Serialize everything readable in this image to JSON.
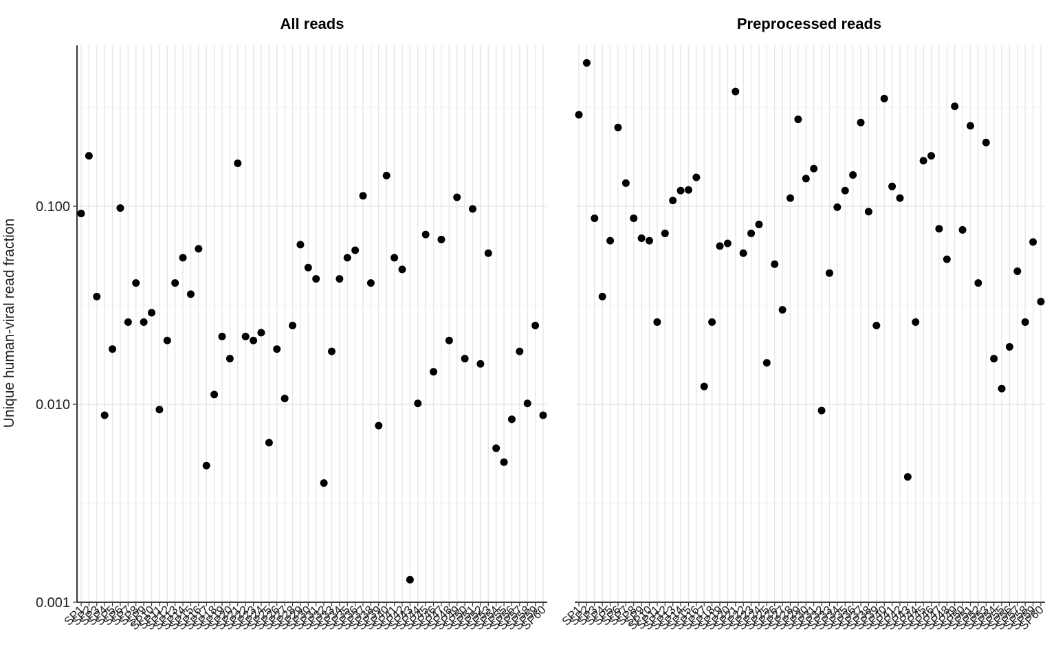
{
  "chart_data": {
    "type": "scatter",
    "ylabel": "Unique human-viral read fraction",
    "xlabel": "",
    "yscale": "log",
    "ylim": [
      0.001,
      0.65
    ],
    "yticks": [
      0.001,
      0.01,
      0.1
    ],
    "ytick_labels": [
      "0.001",
      "0.010",
      "0.100"
    ],
    "grid": true,
    "legend": "none",
    "point_color": "#000000",
    "categories": [
      "SP1",
      "SP2",
      "SP3",
      "SP4",
      "SP5",
      "SP6",
      "SP7",
      "SP8",
      "SP9",
      "SP10",
      "SP11",
      "SP12",
      "SP13",
      "SP14",
      "SP15",
      "SP16",
      "SP17",
      "SP18",
      "SP19",
      "SP20",
      "SP21",
      "SP22",
      "SP23",
      "SP24",
      "SP25",
      "SP26",
      "SP27",
      "SP28",
      "SP29",
      "SP30",
      "SP31",
      "SP32",
      "SP33",
      "SP34",
      "SP35",
      "SP36",
      "SP37",
      "SP38",
      "SP39",
      "SP40",
      "SP41",
      "SP42",
      "SP43",
      "SP44",
      "SP45",
      "SP46",
      "SP47",
      "SP48",
      "SP49",
      "SP50",
      "SP51",
      "SP52",
      "SP53",
      "SP54",
      "SP55",
      "SP56",
      "SP57",
      "SP58",
      "SP59",
      "SP60"
    ],
    "panels": [
      {
        "title": "All reads",
        "values": [
          0.092,
          0.18,
          0.035,
          0.0088,
          0.019,
          0.098,
          0.026,
          0.041,
          0.026,
          0.029,
          0.0094,
          0.021,
          0.041,
          0.055,
          0.036,
          0.061,
          0.0049,
          0.0112,
          0.022,
          0.017,
          0.165,
          0.022,
          0.021,
          0.023,
          0.0064,
          0.019,
          0.0107,
          0.025,
          0.064,
          0.049,
          0.043,
          0.004,
          0.0185,
          0.043,
          0.055,
          0.06,
          0.113,
          0.041,
          0.0078,
          0.143,
          0.055,
          0.048,
          0.0013,
          0.0101,
          0.072,
          0.0146,
          0.068,
          0.021,
          0.111,
          0.017,
          0.097,
          0.016,
          0.058,
          0.006,
          0.0051,
          0.0084,
          0.0185,
          0.0101,
          0.025,
          0.0088
        ]
      },
      {
        "title": "Preprocessed reads",
        "values": [
          0.29,
          0.53,
          0.087,
          0.035,
          0.067,
          0.25,
          0.131,
          0.087,
          0.069,
          0.067,
          0.026,
          0.073,
          0.107,
          0.12,
          0.121,
          0.14,
          0.0123,
          0.026,
          0.063,
          0.065,
          0.38,
          0.058,
          0.073,
          0.081,
          0.0162,
          0.051,
          0.03,
          0.11,
          0.275,
          0.138,
          0.155,
          0.0093,
          0.046,
          0.099,
          0.12,
          0.144,
          0.265,
          0.094,
          0.025,
          0.35,
          0.126,
          0.11,
          0.0043,
          0.026,
          0.17,
          0.18,
          0.077,
          0.054,
          0.32,
          0.076,
          0.255,
          0.041,
          0.21,
          0.017,
          0.012,
          0.0195,
          0.047,
          0.026,
          0.066,
          0.033
        ]
      }
    ]
  }
}
